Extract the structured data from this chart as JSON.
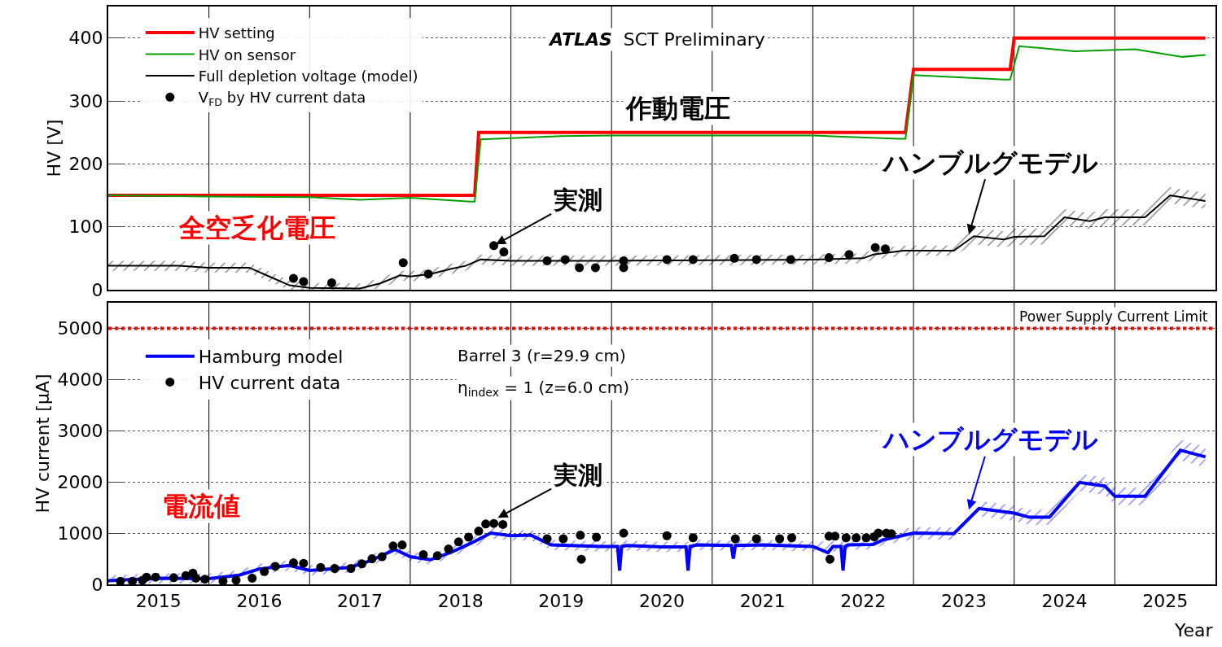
{
  "chart_data": [
    {
      "type": "line",
      "ylabel": "HV [V]",
      "xlim": [
        2015,
        2026
      ],
      "ylim": [
        0,
        450
      ],
      "yticks": [
        0,
        100,
        200,
        300,
        400
      ],
      "grid": "y",
      "legend": "top left",
      "tick_labels": "y",
      "ref_lines": [
        {
          "axis": "x",
          "value": 2016,
          "color": "#000000"
        },
        {
          "axis": "x",
          "value": 2017,
          "color": "#000000"
        },
        {
          "axis": "x",
          "value": 2018,
          "color": "#000000"
        },
        {
          "axis": "x",
          "value": 2019,
          "color": "#000000"
        },
        {
          "axis": "x",
          "value": 2020,
          "color": "#000000"
        },
        {
          "axis": "x",
          "value": 2021,
          "color": "#000000"
        },
        {
          "axis": "x",
          "value": 2022,
          "color": "#000000"
        },
        {
          "axis": "x",
          "value": 2023,
          "color": "#000000"
        },
        {
          "axis": "x",
          "value": 2024,
          "color": "#000000"
        },
        {
          "axis": "x",
          "value": 2025,
          "color": "#000000"
        }
      ],
      "annotations": [
        "ATLAS SCT Preliminary",
        "作動電圧",
        "全空乏化電圧",
        {
          "text": "実測",
          "x": 2018.85,
          "y": 72
        },
        {
          "text": "ハンブルグモデル",
          "x": 2023.55,
          "y": 88
        }
      ],
      "series": [
        {
          "name": "HV setting",
          "color": "#ff0000",
          "x": [
            2015.0,
            2018.64,
            2018.68,
            2022.92,
            2023.0,
            2023.96,
            2024.0,
            2025.9
          ],
          "values": [
            150,
            150,
            250,
            250,
            350,
            350,
            400,
            400
          ]
        },
        {
          "name": "HV on sensor",
          "color": "#00a000",
          "x": [
            2015.0,
            2016.0,
            2017.0,
            2017.5,
            2018.0,
            2018.6,
            2018.64,
            2018.7,
            2019.0,
            2019.5,
            2020.0,
            2021.0,
            2022.0,
            2022.85,
            2022.92,
            2023.0,
            2023.9,
            2023.96,
            2024.05,
            2024.6,
            2025.2,
            2025.67,
            2025.9
          ],
          "values": [
            150,
            148,
            147,
            143,
            146,
            140,
            140,
            239,
            241,
            244,
            245,
            245,
            245,
            240,
            240,
            341,
            334,
            334,
            387,
            379,
            382,
            370,
            373
          ]
        },
        {
          "name": "Full depletion voltage (model)",
          "color": "#000000",
          "x": [
            2015.0,
            2015.7,
            2016.0,
            2016.4,
            2016.6,
            2016.8,
            2017.0,
            2017.5,
            2017.7,
            2017.9,
            2018.0,
            2018.2,
            2018.4,
            2018.55,
            2018.7,
            2019.0,
            2020.0,
            2021.0,
            2022.0,
            2022.5,
            2022.6,
            2022.9,
            2023.4,
            2023.6,
            2023.9,
            2024.0,
            2024.3,
            2024.5,
            2024.75,
            2024.9,
            2025.3,
            2025.55,
            2025.9
          ],
          "values": [
            38,
            38,
            35,
            35,
            21,
            7,
            3,
            2,
            10,
            23,
            21,
            25,
            33,
            38,
            48,
            46,
            46,
            47,
            48,
            50,
            56,
            62,
            62,
            85,
            80,
            84,
            85,
            115,
            109,
            115,
            115,
            150,
            141
          ],
          "lower": [
            30,
            30,
            27,
            27,
            13,
            0,
            0,
            0,
            2,
            15,
            13,
            17,
            25,
            30,
            40,
            38,
            38,
            39,
            40,
            42,
            48,
            54,
            54,
            72,
            67,
            71,
            72,
            102,
            96,
            102,
            102,
            137,
            128
          ],
          "upper": [
            46,
            46,
            43,
            43,
            29,
            15,
            11,
            10,
            18,
            31,
            29,
            33,
            41,
            46,
            56,
            54,
            54,
            55,
            56,
            58,
            64,
            70,
            70,
            98,
            93,
            97,
            98,
            128,
            122,
            128,
            128,
            163,
            154
          ]
        },
        {
          "name": "V$_{FD}$ by HV current data",
          "type": "scatter",
          "marker": "circle",
          "color": "#000000",
          "x": [
            2016.84,
            2016.94,
            2017.22,
            2017.93,
            2018.18,
            2018.83,
            2018.93,
            2019.36,
            2019.54,
            2019.68,
            2019.84,
            2020.12,
            2020.12,
            2020.55,
            2020.81,
            2021.22,
            2021.44,
            2021.78,
            2022.16,
            2022.36,
            2022.62,
            2022.72
          ],
          "values": [
            18,
            13,
            11,
            43,
            25,
            70,
            60,
            46,
            48,
            35,
            35,
            46,
            35,
            48,
            48,
            50,
            48,
            48,
            51,
            56,
            67,
            65
          ]
        }
      ]
    },
    {
      "type": "line",
      "ylabel": "HV current [μA]",
      "xlabel": "Year",
      "xlim": [
        2015,
        2026
      ],
      "xticks": [
        {
          "value": 2015.5,
          "label": "2015"
        },
        {
          "value": 2016.5,
          "label": "2016"
        },
        {
          "value": 2017.5,
          "label": "2017"
        },
        {
          "value": 2018.5,
          "label": "2018"
        },
        {
          "value": 2019.5,
          "label": "2019"
        },
        {
          "value": 2020.5,
          "label": "2020"
        },
        {
          "value": 2021.5,
          "label": "2021"
        },
        {
          "value": 2022.5,
          "label": "2022"
        },
        {
          "value": 2023.5,
          "label": "2023"
        },
        {
          "value": 2024.5,
          "label": "2024"
        },
        {
          "value": 2025.5,
          "label": "2025"
        }
      ],
      "ylim": [
        0,
        5500
      ],
      "yticks": [
        0,
        1000,
        2000,
        3000,
        4000,
        5000
      ],
      "grid": "y",
      "legend": "top left",
      "ref_lines": [
        {
          "axis": "x",
          "value": 2016,
          "color": "#000000"
        },
        {
          "axis": "x",
          "value": 2017,
          "color": "#000000"
        },
        {
          "axis": "x",
          "value": 2018,
          "color": "#000000"
        },
        {
          "axis": "x",
          "value": 2019,
          "color": "#000000"
        },
        {
          "axis": "x",
          "value": 2020,
          "color": "#000000"
        },
        {
          "axis": "x",
          "value": 2021,
          "color": "#000000"
        },
        {
          "axis": "x",
          "value": 2022,
          "color": "#000000"
        },
        {
          "axis": "x",
          "value": 2023,
          "color": "#000000"
        },
        {
          "axis": "x",
          "value": 2024,
          "color": "#000000"
        },
        {
          "axis": "x",
          "value": 2025,
          "color": "#000000"
        },
        {
          "axis": "y",
          "value": 5000,
          "label": "Power Supply Current Limit",
          "color": "#ff0000",
          "line_style": "dotted"
        }
      ],
      "annotations": [
        "電流値",
        "Barrel 3 (r=29.9 cm)",
        "η$_{index}$ = 1 (z=6.0 cm)",
        {
          "text": "実測",
          "x": 2018.87,
          "y": 1300
        },
        {
          "text": "ハンブルグモデル",
          "x": 2023.55,
          "y": 1460
        }
      ],
      "series": [
        {
          "name": "Hamburg model",
          "color": "#0000ff",
          "x": [
            2015.0,
            2015.5,
            2016.0,
            2016.3,
            2016.5,
            2016.8,
            2017.0,
            2017.4,
            2017.6,
            2017.85,
            2018.0,
            2018.2,
            2018.4,
            2018.6,
            2018.8,
            2019.0,
            2019.2,
            2019.4,
            2019.9,
            2020.06,
            2020.08,
            2020.1,
            2020.15,
            2020.5,
            2020.74,
            2020.76,
            2020.78,
            2020.85,
            2021.19,
            2021.21,
            2021.23,
            2021.5,
            2022.0,
            2022.15,
            2022.2,
            2022.28,
            2022.3,
            2022.32,
            2022.35,
            2022.6,
            2022.7,
            2023.0,
            2023.4,
            2023.65,
            2024.0,
            2024.15,
            2024.35,
            2024.65,
            2024.9,
            2025.0,
            2025.3,
            2025.65,
            2025.9
          ],
          "values": [
            70,
            120,
            110,
            180,
            300,
            370,
            270,
            330,
            460,
            680,
            540,
            480,
            620,
            800,
            1000,
            950,
            960,
            770,
            740,
            740,
            270,
            740,
            760,
            730,
            730,
            270,
            740,
            770,
            760,
            500,
            760,
            770,
            740,
            620,
            740,
            740,
            270,
            740,
            770,
            780,
            870,
            1000,
            990,
            1480,
            1390,
            1310,
            1310,
            1990,
            1920,
            1720,
            1720,
            2620,
            2490
          ],
          "lower": [
            0,
            20,
            10,
            80,
            200,
            270,
            170,
            230,
            360,
            580,
            440,
            380,
            520,
            700,
            900,
            850,
            860,
            670,
            640,
            640,
            270,
            640,
            660,
            630,
            630,
            270,
            640,
            670,
            660,
            500,
            660,
            670,
            640,
            620,
            640,
            640,
            270,
            640,
            670,
            680,
            770,
            880,
            870,
            1330,
            1240,
            1160,
            1160,
            1820,
            1750,
            1550,
            1550,
            2420,
            2290
          ],
          "upper": [
            170,
            220,
            210,
            280,
            400,
            470,
            370,
            430,
            560,
            780,
            640,
            580,
            720,
            900,
            1100,
            1050,
            1060,
            870,
            840,
            840,
            840,
            840,
            860,
            830,
            830,
            830,
            840,
            870,
            860,
            860,
            860,
            870,
            840,
            840,
            840,
            840,
            840,
            840,
            870,
            880,
            970,
            1120,
            1110,
            1630,
            1540,
            1460,
            1460,
            2160,
            2090,
            1890,
            1890,
            2820,
            2690
          ]
        },
        {
          "name": "HV current data",
          "type": "scatter",
          "marker": "circle",
          "color": "#000000",
          "x": [
            2015.12,
            2015.24,
            2015.34,
            2015.38,
            2015.47,
            2015.65,
            2015.77,
            2015.84,
            2015.87,
            2015.96,
            2016.14,
            2016.27,
            2016.43,
            2016.55,
            2016.66,
            2016.84,
            2016.94,
            2017.11,
            2017.25,
            2017.41,
            2017.52,
            2017.62,
            2017.72,
            2017.83,
            2017.92,
            2018.13,
            2018.27,
            2018.38,
            2018.48,
            2018.58,
            2018.68,
            2018.75,
            2018.83,
            2018.92,
            2019.36,
            2019.52,
            2019.69,
            2019.7,
            2019.85,
            2020.12,
            2020.55,
            2020.81,
            2021.23,
            2021.44,
            2021.67,
            2021.79,
            2022.16,
            2022.17,
            2022.22,
            2022.33,
            2022.43,
            2022.53,
            2022.61,
            2022.65,
            2022.73,
            2022.78
          ],
          "values": [
            60,
            60,
            80,
            140,
            140,
            130,
            170,
            220,
            120,
            100,
            60,
            80,
            120,
            250,
            350,
            420,
            410,
            330,
            310,
            310,
            400,
            500,
            540,
            750,
            770,
            580,
            560,
            690,
            830,
            920,
            1040,
            1180,
            1190,
            1170,
            890,
            890,
            960,
            490,
            920,
            1000,
            950,
            910,
            890,
            890,
            890,
            910,
            940,
            490,
            940,
            910,
            910,
            910,
            930,
            1000,
            1000,
            990
          ]
        }
      ]
    }
  ]
}
